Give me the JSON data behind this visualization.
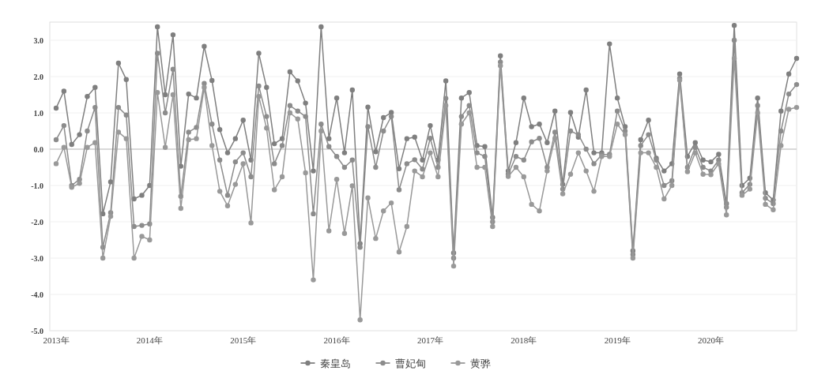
{
  "chart_data": {
    "type": "line",
    "categories": [
      "2013年",
      null,
      null,
      null,
      null,
      null,
      null,
      null,
      null,
      null,
      null,
      null,
      "2014年",
      null,
      null,
      null,
      null,
      null,
      null,
      null,
      null,
      null,
      null,
      null,
      "2015年",
      null,
      null,
      null,
      null,
      null,
      null,
      null,
      null,
      null,
      null,
      null,
      "2016年",
      null,
      null,
      null,
      null,
      null,
      null,
      null,
      null,
      null,
      null,
      null,
      "2017年",
      null,
      null,
      null,
      null,
      null,
      null,
      null,
      null,
      null,
      null,
      null,
      "2018年",
      null,
      null,
      null,
      null,
      null,
      null,
      null,
      null,
      null,
      null,
      null,
      "2019年",
      null,
      null,
      null,
      null,
      null,
      null,
      null,
      null,
      null,
      null,
      null,
      "2020年",
      null,
      null,
      null,
      null,
      null,
      null,
      null,
      null,
      null,
      null,
      null
    ],
    "series": [
      {
        "name": "秦皇岛",
        "color": "#7f7f7f",
        "values": [
          1.13,
          1.6,
          0.13,
          0.4,
          1.45,
          1.7,
          -1.78,
          -0.9,
          2.37,
          1.92,
          -1.37,
          -1.27,
          -1.0,
          3.37,
          1.5,
          3.15,
          -0.47,
          1.52,
          1.41,
          2.83,
          1.89,
          0.54,
          -0.1,
          0.29,
          0.8,
          -0.3,
          2.64,
          1.7,
          0.15,
          0.29,
          2.13,
          1.88,
          1.27,
          -0.6,
          3.37,
          0.29,
          1.41,
          -0.1,
          1.63,
          -2.6,
          1.16,
          -0.07,
          0.87,
          1.01,
          -0.54,
          0.29,
          0.33,
          -0.3,
          0.65,
          -0.3,
          1.88,
          -2.86,
          1.41,
          1.56,
          0.1,
          0.07,
          -1.88,
          2.57,
          -0.6,
          0.18,
          1.41,
          0.62,
          0.69,
          0.18,
          1.05,
          -0.97,
          1.01,
          0.33,
          1.63,
          -0.1,
          -0.1,
          2.9,
          1.41,
          0.62,
          -2.8,
          0.26,
          0.8,
          -0.25,
          -0.6,
          -0.4,
          2.07,
          -0.2,
          0.18,
          -0.3,
          -0.35,
          -0.14,
          -1.5,
          3.41,
          -1.0,
          -0.8,
          1.41,
          -1.2,
          -1.4,
          1.05,
          2.07,
          2.5
        ]
      },
      {
        "name": "曹妃甸",
        "color": "#8c8c8c",
        "values": [
          0.26,
          0.65,
          -1.0,
          -0.83,
          0.5,
          1.15,
          -2.7,
          -1.75,
          1.15,
          0.94,
          -2.13,
          -2.1,
          -2.06,
          2.64,
          1.0,
          2.2,
          -1.3,
          0.47,
          0.6,
          1.81,
          0.69,
          -0.3,
          -1.27,
          -0.35,
          -0.1,
          -0.76,
          1.74,
          0.9,
          -0.4,
          0.1,
          1.2,
          1.05,
          0.9,
          -1.78,
          0.69,
          0.07,
          -0.2,
          -0.5,
          -0.3,
          -2.7,
          0.62,
          -0.5,
          0.5,
          0.9,
          -1.12,
          -0.4,
          -0.29,
          -0.55,
          0.3,
          -0.5,
          1.4,
          -3.0,
          0.9,
          1.2,
          -0.1,
          -0.2,
          -2.0,
          2.4,
          -0.69,
          -0.2,
          -0.3,
          0.2,
          0.3,
          -0.5,
          0.47,
          -1.1,
          0.5,
          0.4,
          0.0,
          -0.4,
          -0.15,
          -0.14,
          1.05,
          0.5,
          -2.9,
          0.1,
          0.4,
          -0.3,
          -1.0,
          -0.87,
          1.95,
          -0.5,
          0.05,
          -0.5,
          -0.6,
          -0.3,
          -1.6,
          3.0,
          -1.2,
          -0.97,
          1.2,
          -1.35,
          -1.5,
          0.5,
          1.52,
          1.78
        ]
      },
      {
        "name": "黄骅",
        "color": "#999999",
        "values": [
          -0.4,
          0.05,
          -1.05,
          -0.94,
          0.05,
          0.18,
          -3.0,
          -1.85,
          0.47,
          0.29,
          -3.0,
          -2.4,
          -2.5,
          1.56,
          0.05,
          1.5,
          -1.63,
          0.26,
          0.29,
          1.7,
          0.1,
          -1.16,
          -1.56,
          -0.97,
          -0.4,
          -2.03,
          1.45,
          0.58,
          -1.12,
          -0.76,
          1.0,
          0.83,
          -0.65,
          -3.6,
          0.5,
          -2.25,
          -0.83,
          -2.32,
          -1.01,
          -4.7,
          -1.34,
          -2.46,
          -1.7,
          -1.48,
          -2.83,
          -2.13,
          -0.6,
          -0.76,
          -0.1,
          -0.76,
          1.2,
          -3.22,
          0.69,
          1.0,
          -0.5,
          -0.5,
          -2.13,
          2.3,
          -0.75,
          -0.5,
          -0.76,
          -1.52,
          -1.7,
          -0.6,
          0.3,
          -1.23,
          -0.69,
          -0.1,
          -0.6,
          -1.16,
          -0.2,
          -0.2,
          0.69,
          0.4,
          -3.0,
          -0.1,
          -0.1,
          -0.5,
          -1.37,
          -1.0,
          1.9,
          -0.62,
          -0.1,
          -0.69,
          -0.7,
          -0.4,
          -1.81,
          2.5,
          -1.27,
          -1.1,
          1.0,
          -1.52,
          -1.67,
          0.1,
          1.1,
          1.15
        ]
      }
    ],
    "ylim": [
      -5,
      3.5
    ],
    "yticks": [
      {
        "value": 3,
        "label": "3.0"
      },
      {
        "value": 2,
        "label": "2.0"
      },
      {
        "value": 1,
        "label": "1.0"
      },
      {
        "value": 0,
        "label": "0.0"
      },
      {
        "value": -1,
        "label": "-1.0"
      },
      {
        "value": -2,
        "label": "-2.0"
      },
      {
        "value": -3,
        "label": "-3.0"
      },
      {
        "value": -4,
        "label": "-4.0"
      },
      {
        "value": -5,
        "label": "-5.0"
      }
    ],
    "grid": "y",
    "legend": "bottom",
    "marker": "circle"
  }
}
